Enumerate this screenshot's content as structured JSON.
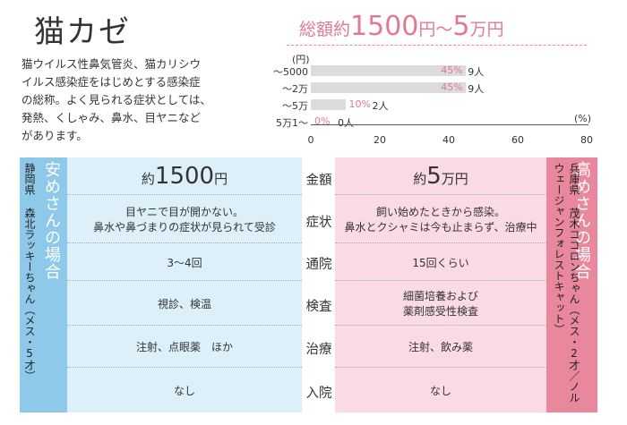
{
  "title": "猫カゼ",
  "intro": [
    "猫ウイルス性鼻気管炎、猫カリシウ",
    "イルス感染症をはじめとする感染症",
    "の総称。よく見られる症状としては、",
    "発熱、くしゃみ、鼻水、目ヤニなど",
    "があります。"
  ],
  "cost_header": {
    "prefix": "総額約",
    "amount1": "1500",
    "mid": "円〜",
    "amount2": "5",
    "suffix": "万円"
  },
  "chart_data": {
    "type": "bar",
    "y_unit": "(円)",
    "x_unit": "(%)",
    "categories": [
      "〜5000",
      "〜2万",
      "〜5万",
      "5万1〜"
    ],
    "values": [
      45,
      45,
      10,
      0
    ],
    "value_labels": [
      "45%",
      "45%",
      "10%",
      "0%"
    ],
    "counts": [
      "9人",
      "9人",
      "2人",
      "0人"
    ],
    "xlim": [
      0,
      80
    ],
    "xticks": [
      "0",
      "20",
      "40",
      "60",
      "80"
    ],
    "bar_color": "#dcdcdc",
    "label_color": "#e27993"
  },
  "left_case": {
    "name": "安めさんの場合",
    "location": "静岡県 森北ラッキーちゃん（メス・5才）"
  },
  "right_case": {
    "name": "高めさんの場合",
    "location": "兵庫県 茂木ココロンちゃん（メス・2才／ノルウェージャンフォレストキャット）"
  },
  "rows": [
    {
      "label": "金額",
      "left_prefix": "約",
      "left_amount": "1500",
      "left_unit": "円",
      "right_prefix": "約",
      "right_amount": "5",
      "right_unit": "万円"
    },
    {
      "label": "症状",
      "left": [
        "目ヤニで目が開かない。",
        "鼻水や鼻づまりの症状が見られて受診"
      ],
      "right": [
        "飼い始めたときから感染。",
        "鼻水とクシャミは今も止まらず、治療中"
      ]
    },
    {
      "label": "通院",
      "left": [
        "3～4回"
      ],
      "right": [
        "15回くらい"
      ]
    },
    {
      "label": "検査",
      "left": [
        "視診、検温"
      ],
      "right": [
        "細菌培養および",
        "薬剤感受性検査"
      ]
    },
    {
      "label": "治療",
      "left": [
        "注射、点眼薬　ほか"
      ],
      "right": [
        "注射、飲み薬"
      ]
    },
    {
      "label": "入院",
      "left": [
        "なし"
      ],
      "right": [
        "なし"
      ]
    }
  ],
  "colors": {
    "blue_head": "#8fc9ea",
    "blue_body": "#ddf0fa",
    "pink_head": "#e9889d",
    "pink_body": "#fbdbe3",
    "accent": "#e27993"
  }
}
